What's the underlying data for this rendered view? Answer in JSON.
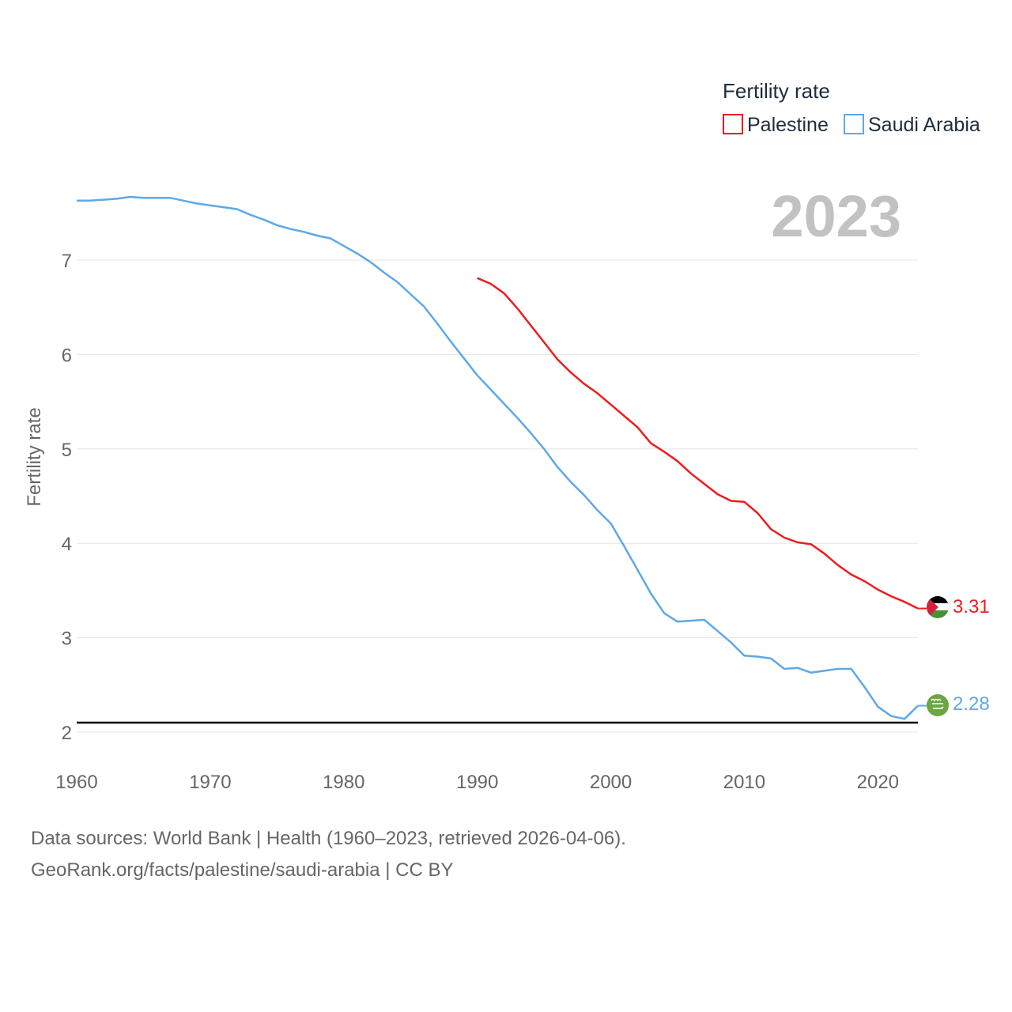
{
  "legend": {
    "title": "Fertility rate"
  },
  "year_label": "2023",
  "source": {
    "line1": "Data sources: World Bank | Health (1960–2023, retrieved 2026-04-06).",
    "line2": "GeoRank.org/facts/palestine/saudi-arabia | CC BY"
  },
  "colors": {
    "palestine": "#ee1c1c",
    "saudi": "#5ea8e8",
    "grid": "#e6e6e6",
    "reference": "#000000"
  },
  "chart_data": {
    "type": "line",
    "title": "Fertility rate",
    "xlabel": "",
    "ylabel": "Fertility rate",
    "xlim": [
      1960,
      2023
    ],
    "ylim": [
      2,
      7.8
    ],
    "x_ticks": [
      1960,
      1970,
      1980,
      1990,
      2000,
      2010,
      2020
    ],
    "y_ticks": [
      2,
      3,
      4,
      5,
      6,
      7
    ],
    "reference_line": 2.1,
    "legend_position": "top-right",
    "series": [
      {
        "name": "Palestine",
        "key": "palestine",
        "end_label": "3.31",
        "x": [
          1990,
          1991,
          1992,
          1993,
          1994,
          1995,
          1996,
          1997,
          1998,
          1999,
          2000,
          2001,
          2002,
          2003,
          2004,
          2005,
          2006,
          2007,
          2008,
          2009,
          2010,
          2011,
          2012,
          2013,
          2014,
          2015,
          2016,
          2017,
          2018,
          2019,
          2020,
          2021,
          2022,
          2023
        ],
        "values": [
          6.81,
          6.75,
          6.65,
          6.49,
          6.31,
          6.13,
          5.95,
          5.81,
          5.69,
          5.59,
          5.47,
          5.35,
          5.23,
          5.06,
          4.97,
          4.87,
          4.74,
          4.63,
          4.52,
          4.45,
          4.44,
          4.32,
          4.15,
          4.06,
          4.01,
          3.99,
          3.89,
          3.77,
          3.67,
          3.6,
          3.51,
          3.44,
          3.38,
          3.31
        ]
      },
      {
        "name": "Saudi Arabia",
        "key": "saudi",
        "end_label": "2.28",
        "x": [
          1960,
          1961,
          1962,
          1963,
          1964,
          1965,
          1966,
          1967,
          1968,
          1969,
          1970,
          1971,
          1972,
          1973,
          1974,
          1975,
          1976,
          1977,
          1978,
          1979,
          1980,
          1981,
          1982,
          1983,
          1984,
          1985,
          1986,
          1987,
          1988,
          1989,
          1990,
          1991,
          1992,
          1993,
          1994,
          1995,
          1996,
          1997,
          1998,
          1999,
          2000,
          2001,
          2002,
          2003,
          2004,
          2005,
          2006,
          2007,
          2008,
          2009,
          2010,
          2011,
          2012,
          2013,
          2014,
          2015,
          2016,
          2017,
          2018,
          2019,
          2020,
          2021,
          2022,
          2023
        ],
        "values": [
          7.63,
          7.63,
          7.64,
          7.65,
          7.67,
          7.66,
          7.66,
          7.66,
          7.63,
          7.6,
          7.58,
          7.56,
          7.54,
          7.48,
          7.43,
          7.37,
          7.33,
          7.3,
          7.26,
          7.23,
          7.15,
          7.07,
          6.98,
          6.87,
          6.77,
          6.64,
          6.51,
          6.33,
          6.14,
          5.96,
          5.78,
          5.63,
          5.48,
          5.33,
          5.17,
          5.0,
          4.81,
          4.65,
          4.51,
          4.35,
          4.21,
          3.97,
          3.72,
          3.47,
          3.26,
          3.17,
          3.18,
          3.19,
          3.07,
          2.95,
          2.81,
          2.8,
          2.78,
          2.67,
          2.68,
          2.63,
          2.65,
          2.67,
          2.67,
          2.48,
          2.27,
          2.17,
          2.14,
          2.28
        ]
      }
    ]
  }
}
